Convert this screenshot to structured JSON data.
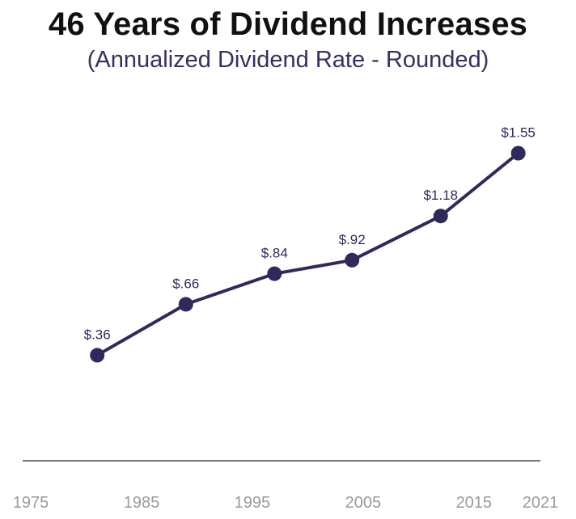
{
  "title": "46 Years of Dividend Increases",
  "subtitle": "(Annualized Dividend Rate - Rounded)",
  "chart_data": {
    "type": "line",
    "title": "46 Years of Dividend Increases",
    "subtitle": "(Annualized Dividend Rate - Rounded)",
    "x_ticks": [
      "1975",
      "1985",
      "1995",
      "2005",
      "2015",
      "2021"
    ],
    "xlim": [
      1975,
      2021
    ],
    "ylim": [
      0,
      1.8
    ],
    "grid": false,
    "series": [
      {
        "x": [
          1981,
          1989,
          1997,
          2004,
          2012,
          2019
        ],
        "values": [
          0.36,
          0.66,
          0.84,
          0.92,
          1.18,
          1.55
        ],
        "labels": [
          "$.36",
          "$.66",
          "$.84",
          "$.92",
          "$1.18",
          "$1.55"
        ]
      }
    ],
    "colors": {
      "line": "#2f2a5c",
      "marker": "#2f2a5c",
      "label": "#2f2a5c",
      "axis": "#7a7a7a",
      "tick": "#9a9a9a"
    }
  }
}
